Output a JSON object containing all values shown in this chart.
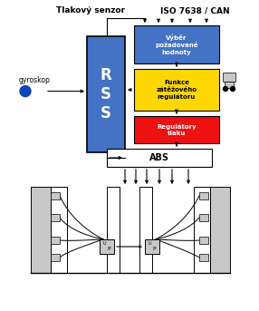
{
  "title_left": "Tlakový senzor",
  "title_right": "ISO 7638 / CAN",
  "box_rss_label": "R\nS\nS",
  "box_vybr_label": "Výběr\npožadované\nhodnoty",
  "box_funkce_label": "Funkce\nzátěžového\nregulátoru",
  "box_reg_label": "Regulátory\ntlaku",
  "box_abs_label": "ABS",
  "gyroskop_label": "gyroskop",
  "color_blue": "#4472C4",
  "color_yellow": "#FFD700",
  "color_red": "#EE1111",
  "color_white": "#FFFFFF",
  "color_black": "#000000",
  "color_light_gray": "#C8C8C8",
  "color_mid_gray": "#A0A0A0",
  "color_dark_gray": "#606060",
  "color_gyro_blue": "#1144BB",
  "bg_color": "#FFFFFF"
}
